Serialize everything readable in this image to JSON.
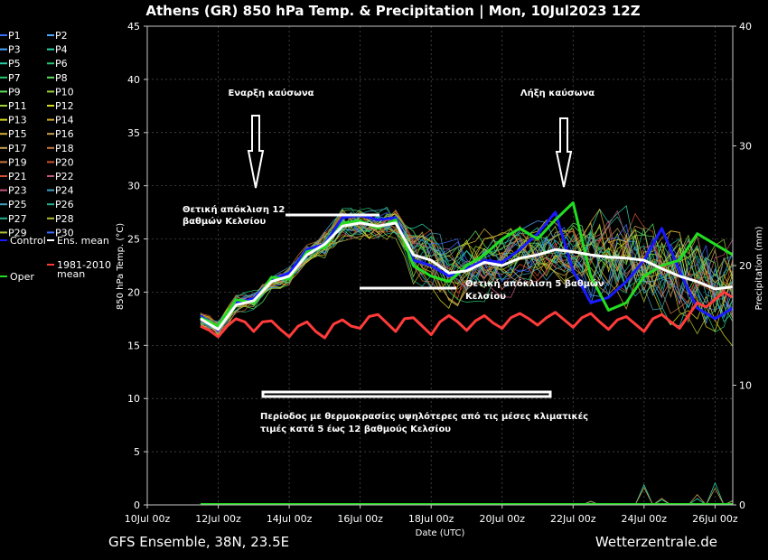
{
  "header": {
    "title": "Athens  (GR)  850 hPa Temp. & Precipitation | Mon, 10Jul2023 12Z"
  },
  "footer": {
    "left": "GFS Ensemble, 38N, 23.5E",
    "right": "Wetterzentrale.de"
  },
  "legend": {
    "pairs": [
      [
        "P1",
        "P2"
      ],
      [
        "P3",
        "P4"
      ],
      [
        "P5",
        "P6"
      ],
      [
        "P7",
        "P8"
      ],
      [
        "P9",
        "P10"
      ],
      [
        "P11",
        "P12"
      ],
      [
        "P13",
        "P14"
      ],
      [
        "P15",
        "P16"
      ],
      [
        "P17",
        "P18"
      ],
      [
        "P19",
        "P20"
      ],
      [
        "P21",
        "P22"
      ],
      [
        "P23",
        "P24"
      ],
      [
        "P25",
        "P26"
      ],
      [
        "P27",
        "P28"
      ],
      [
        "P29",
        "P30"
      ]
    ],
    "control": "Control",
    "ens_mean": "Ens. mean",
    "oper": "Oper",
    "clim_line1": "1981-2010",
    "clim_line2": "mean",
    "colors": [
      "#3a6dff",
      "#4aa8ff",
      "#2bd0a8",
      "#27c870",
      "#5ce05c",
      "#9ad63a",
      "#d8d820",
      "#d6b030",
      "#c8a050",
      "#c87840",
      "#d05030",
      "#c05878",
      "#40a0c0",
      "#20b090",
      "#b0c030"
    ]
  },
  "annotations": {
    "heatwave_start": "Εναρξη καύσωνα",
    "heatwave_end": "Λήξη καύσωνα",
    "deviation_12_line1": "Θετική απόκλιση 12",
    "deviation_12_line2": "βαθμών Κελσίου",
    "deviation_5_line1": "Θετική απόκλιση 5 βαθμών",
    "deviation_5_line2": "Κελσίου",
    "period_line1": "Περίοδος με θερμοκρασίες υψηλότερες από τις μέσες κλιματικές",
    "period_line2": "τιμές κατά 5 έως 12 βαθμούς Κελσίου"
  },
  "chart_data": {
    "type": "line",
    "xlabel": "Date (UTC)",
    "ylabel": "850 hPa Temp. (°C)",
    "y2label": "Precipitation (mm)",
    "x_range_hours": [
      0,
      396
    ],
    "ylim": [
      0,
      45
    ],
    "y2lim": [
      0,
      40
    ],
    "y_ticks": [
      0,
      5,
      10,
      15,
      20,
      25,
      30,
      35,
      40,
      45
    ],
    "y2_ticks": [
      0,
      10,
      20,
      30,
      40
    ],
    "x_ticks": [
      "10Jul 00z",
      "12Jul 00z",
      "14Jul 00z",
      "16Jul 00z",
      "18Jul 00z",
      "20Jul 00z",
      "22Jul 00z",
      "24Jul 00z",
      "26Jul 00z"
    ],
    "grid": true,
    "series": [
      {
        "name": "Ens. mean",
        "color": "#ffffff",
        "points": [
          [
            36,
            17.5
          ],
          [
            48,
            16.5
          ],
          [
            60,
            18.8
          ],
          [
            72,
            19.2
          ],
          [
            84,
            21.0
          ],
          [
            96,
            21.5
          ],
          [
            108,
            23.5
          ],
          [
            120,
            24.5
          ],
          [
            132,
            26.2
          ],
          [
            144,
            26.5
          ],
          [
            156,
            26.2
          ],
          [
            168,
            26.5
          ],
          [
            180,
            23.5
          ],
          [
            192,
            23.0
          ],
          [
            204,
            21.8
          ],
          [
            216,
            22.0
          ],
          [
            228,
            22.8
          ],
          [
            240,
            22.5
          ],
          [
            252,
            23.2
          ],
          [
            264,
            23.5
          ],
          [
            276,
            24.0
          ],
          [
            288,
            23.8
          ],
          [
            300,
            23.5
          ],
          [
            312,
            23.3
          ],
          [
            324,
            23.2
          ],
          [
            336,
            23.0
          ],
          [
            348,
            22.2
          ],
          [
            360,
            21.5
          ],
          [
            372,
            21.0
          ],
          [
            384,
            20.3
          ],
          [
            396,
            20.5
          ]
        ]
      },
      {
        "name": "Control",
        "color": "#1a1aff",
        "points": [
          [
            36,
            17.8
          ],
          [
            48,
            16.4
          ],
          [
            60,
            19.0
          ],
          [
            72,
            19.4
          ],
          [
            84,
            21.2
          ],
          [
            96,
            21.8
          ],
          [
            108,
            24.0
          ],
          [
            120,
            24.5
          ],
          [
            132,
            27.0
          ],
          [
            144,
            27.2
          ],
          [
            156,
            26.8
          ],
          [
            168,
            27.0
          ],
          [
            180,
            23.0
          ],
          [
            192,
            22.5
          ],
          [
            204,
            21.5
          ],
          [
            216,
            22.2
          ],
          [
            228,
            23.0
          ],
          [
            240,
            22.8
          ],
          [
            252,
            24.0
          ],
          [
            264,
            25.5
          ],
          [
            276,
            27.5
          ],
          [
            288,
            22.0
          ],
          [
            300,
            19.0
          ],
          [
            312,
            19.5
          ],
          [
            324,
            21.0
          ],
          [
            336,
            23.0
          ],
          [
            348,
            26.0
          ],
          [
            360,
            22.0
          ],
          [
            372,
            18.5
          ],
          [
            384,
            17.5
          ],
          [
            396,
            18.5
          ]
        ]
      },
      {
        "name": "Oper",
        "color": "#22dd22",
        "points": [
          [
            36,
            17.6
          ],
          [
            48,
            16.8
          ],
          [
            60,
            19.3
          ],
          [
            72,
            19.0
          ],
          [
            84,
            21.4
          ],
          [
            96,
            21.2
          ],
          [
            108,
            23.8
          ],
          [
            120,
            24.2
          ],
          [
            132,
            26.5
          ],
          [
            144,
            26.7
          ],
          [
            156,
            26.0
          ],
          [
            168,
            26.8
          ],
          [
            180,
            22.5
          ],
          [
            192,
            21.5
          ],
          [
            204,
            21.0
          ],
          [
            216,
            22.5
          ],
          [
            228,
            23.5
          ],
          [
            240,
            25.0
          ],
          [
            252,
            26.0
          ],
          [
            264,
            25.0
          ],
          [
            276,
            26.8
          ],
          [
            288,
            28.4
          ],
          [
            300,
            21.5
          ],
          [
            312,
            18.3
          ],
          [
            324,
            19.0
          ],
          [
            336,
            21.5
          ],
          [
            348,
            22.5
          ],
          [
            360,
            23.0
          ],
          [
            372,
            25.5
          ],
          [
            384,
            24.5
          ],
          [
            396,
            23.5
          ]
        ]
      },
      {
        "name": "1981-2010 mean",
        "color": "#ff3b3b",
        "points": [
          [
            36,
            16.8
          ],
          [
            42,
            16.4
          ],
          [
            48,
            15.8
          ],
          [
            54,
            16.8
          ],
          [
            60,
            17.5
          ],
          [
            66,
            17.2
          ],
          [
            72,
            16.3
          ],
          [
            78,
            17.2
          ],
          [
            84,
            17.3
          ],
          [
            90,
            16.5
          ],
          [
            96,
            15.8
          ],
          [
            102,
            16.8
          ],
          [
            108,
            17.2
          ],
          [
            114,
            16.3
          ],
          [
            120,
            15.7
          ],
          [
            126,
            17.0
          ],
          [
            132,
            17.4
          ],
          [
            138,
            16.8
          ],
          [
            144,
            16.6
          ],
          [
            150,
            17.7
          ],
          [
            156,
            17.9
          ],
          [
            162,
            17.1
          ],
          [
            168,
            16.3
          ],
          [
            174,
            17.5
          ],
          [
            180,
            17.6
          ],
          [
            186,
            16.8
          ],
          [
            192,
            16.0
          ],
          [
            198,
            17.2
          ],
          [
            204,
            17.8
          ],
          [
            210,
            17.2
          ],
          [
            216,
            16.4
          ],
          [
            222,
            17.3
          ],
          [
            228,
            17.8
          ],
          [
            234,
            17.1
          ],
          [
            240,
            16.6
          ],
          [
            246,
            17.6
          ],
          [
            252,
            18.0
          ],
          [
            258,
            17.5
          ],
          [
            264,
            16.9
          ],
          [
            270,
            17.6
          ],
          [
            276,
            18.1
          ],
          [
            282,
            17.4
          ],
          [
            288,
            16.7
          ],
          [
            294,
            17.6
          ],
          [
            300,
            18.0
          ],
          [
            306,
            17.2
          ],
          [
            312,
            16.5
          ],
          [
            318,
            17.4
          ],
          [
            324,
            17.7
          ],
          [
            330,
            17.0
          ],
          [
            336,
            16.3
          ],
          [
            342,
            17.5
          ],
          [
            348,
            17.9
          ],
          [
            354,
            17.2
          ],
          [
            360,
            16.6
          ],
          [
            366,
            17.8
          ],
          [
            372,
            19.0
          ],
          [
            378,
            18.6
          ],
          [
            384,
            19.3
          ],
          [
            390,
            20.0
          ],
          [
            396,
            19.5
          ]
        ]
      }
    ]
  }
}
